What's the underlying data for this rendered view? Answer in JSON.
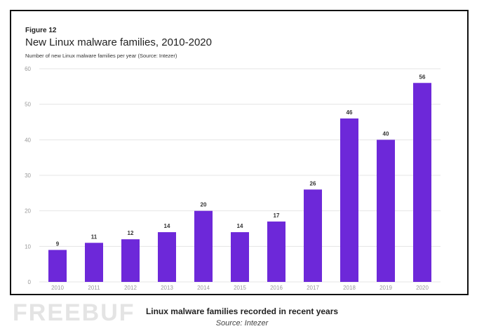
{
  "figure_label": "Figure 12",
  "caption": "Linux malware families recorded in recent years",
  "source": "Source: Intezer",
  "watermark": "FREEBUF",
  "colors": {
    "bar": "#6d28d9",
    "grid": "#e5e5e5",
    "tick": "#999999"
  },
  "chart_data": {
    "type": "bar",
    "title": "New Linux malware families, 2010-2020",
    "subtitle": "Number of new Linux malware families per year (Source: Intezer)",
    "xlabel": "",
    "ylabel": "",
    "categories": [
      "2010",
      "2011",
      "2012",
      "2013",
      "2014",
      "2015",
      "2016",
      "2017",
      "2018",
      "2019",
      "2020"
    ],
    "values": [
      9,
      11,
      12,
      14,
      20,
      14,
      17,
      26,
      46,
      40,
      56
    ],
    "ylim": [
      0,
      60
    ],
    "yticks": [
      0,
      10,
      20,
      30,
      40,
      50,
      60
    ],
    "grid": true,
    "data_labels": true
  }
}
